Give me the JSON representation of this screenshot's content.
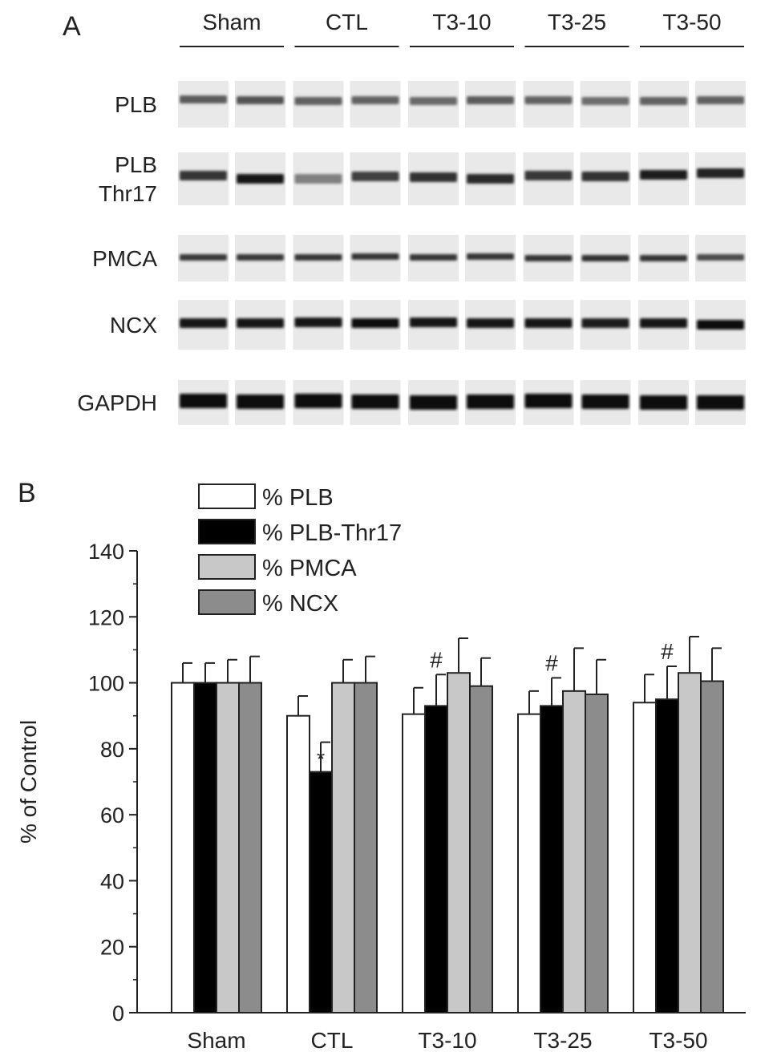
{
  "panel_a": {
    "label": "A",
    "groups": [
      "Sham",
      "CTL",
      "T3-10",
      "T3-25",
      "T3-50"
    ],
    "rows": [
      {
        "lines": [
          "PLB"
        ]
      },
      {
        "lines": [
          "PLB",
          "Thr17"
        ]
      },
      {
        "lines": [
          "PMCA"
        ]
      },
      {
        "lines": [
          "NCX"
        ]
      },
      {
        "lines": [
          "GAPDH"
        ]
      }
    ]
  },
  "panel_b": {
    "label": "B"
  },
  "chart_data": {
    "type": "bar",
    "categories": [
      "Sham",
      "CTL",
      "T3-10",
      "T3-25",
      "T3-50"
    ],
    "ylabel": "% of Control",
    "ylim": [
      0,
      140
    ],
    "yticks": [
      0,
      20,
      40,
      60,
      80,
      100,
      120,
      140
    ],
    "grid": false,
    "legend_position": "top-left",
    "series": [
      {
        "name": "% PLB",
        "color": "#ffffff",
        "values": [
          100,
          90,
          90.5,
          90.5,
          94
        ],
        "errors": [
          6,
          6,
          8,
          7,
          8.5
        ],
        "markers": [
          "",
          "",
          "",
          "",
          ""
        ]
      },
      {
        "name": "% PLB-Thr17",
        "color": "#000000",
        "values": [
          100,
          73,
          93,
          93,
          95
        ],
        "errors": [
          6,
          9,
          9.5,
          8.5,
          10
        ],
        "markers": [
          "",
          "*",
          "#",
          "#",
          "#"
        ]
      },
      {
        "name": "% PMCA",
        "color": "#c8c8c8",
        "values": [
          100,
          100,
          103,
          97.5,
          103
        ],
        "errors": [
          7,
          7,
          10.5,
          13,
          11
        ],
        "markers": [
          "",
          "",
          "",
          "",
          ""
        ]
      },
      {
        "name": "% NCX",
        "color": "#8c8c8c",
        "values": [
          100,
          100,
          99,
          96.5,
          100.5
        ],
        "errors": [
          8,
          8,
          8.5,
          10.5,
          10
        ],
        "markers": [
          "",
          "",
          "",
          "",
          ""
        ]
      }
    ]
  }
}
